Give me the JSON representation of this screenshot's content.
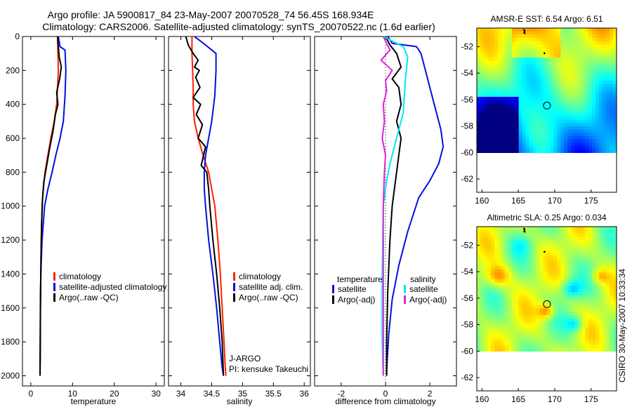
{
  "title_line1": "Argo profile: JA 5900817_84 23-May-2007 20070528_74 56.45S 168.934E",
  "title_line2": "Climatology: CARS2006. Satellite-adjusted climatology: synTS_20070522.nc (1.6d earlier)",
  "credit": "CSIRO 30-May-2007 10:33:34",
  "chart_data": [
    {
      "id": "temperature",
      "type": "line",
      "xlabel": "temperature",
      "ylabel": "",
      "xlim": [
        -2,
        32
      ],
      "ylim": [
        0,
        2060
      ],
      "xticks": [
        0,
        10,
        20,
        30
      ],
      "xtick_labels": [
        "0",
        "10",
        "20",
        "30"
      ],
      "yticks": [
        0,
        200,
        400,
        600,
        800,
        1000,
        1200,
        1400,
        1600,
        1800,
        2000
      ],
      "ytick_labels": [
        "0",
        "200",
        "400",
        "600",
        "800",
        "1000",
        "1200",
        "1400",
        "1600",
        "1800",
        "2000"
      ],
      "legend": [
        "climatology",
        "satellite-adjusted climatology",
        "Argo(..raw -QC)"
      ],
      "series": [
        {
          "name": "climatology",
          "color": "#ff2000",
          "x": [
            6.4,
            6.5,
            6.6,
            6.4,
            6.2,
            5.6,
            4.8,
            4.1,
            3.4,
            3.0,
            2.7,
            2.5,
            2.4,
            2.3,
            2.25,
            2.2,
            2.2
          ],
          "y": [
            0,
            100,
            200,
            300,
            400,
            500,
            600,
            700,
            800,
            900,
            1000,
            1200,
            1400,
            1600,
            1800,
            1950,
            2000
          ]
        },
        {
          "name": "satellite-adjusted climatology",
          "color": "#0010e0",
          "x": [
            6.6,
            7.0,
            8.2,
            8.4,
            8.2,
            7.8,
            7.0,
            6.0,
            5.1,
            4.1,
            3.3,
            2.7,
            2.4,
            2.3,
            2.25,
            2.2,
            2.2
          ],
          "y": [
            0,
            60,
            80,
            200,
            350,
            500,
            600,
            700,
            800,
            900,
            1000,
            1200,
            1400,
            1600,
            1800,
            1950,
            2000
          ]
        },
        {
          "name": "Argo(..raw -QC)",
          "color": "#000000",
          "x": [
            6.4,
            6.6,
            6.8,
            7.3,
            6.9,
            6.2,
            6.5,
            5.9,
            5.3,
            4.5,
            3.8,
            3.1,
            2.8,
            2.6,
            2.45,
            2.35,
            2.3,
            2.25,
            2.2
          ],
          "y": [
            0,
            60,
            120,
            180,
            250,
            330,
            400,
            460,
            560,
            660,
            760,
            860,
            960,
            1100,
            1300,
            1500,
            1700,
            1900,
            2000
          ]
        }
      ]
    },
    {
      "id": "salinity",
      "type": "line",
      "xlabel": "salinity",
      "ylabel": "",
      "xlim": [
        33.8,
        36.1
      ],
      "ylim": [
        0,
        2060
      ],
      "xticks": [
        34,
        34.5,
        35,
        35.5,
        36
      ],
      "xtick_labels": [
        "34",
        "34.5",
        "35",
        "35.5",
        "36"
      ],
      "legend": [
        "climatology",
        "satellite adj. clim.",
        "Argo(..raw -QC)"
      ],
      "annotations": [
        "J-ARGO",
        "PI: kensuke Takeuchi"
      ],
      "series": [
        {
          "name": "climatology",
          "color": "#ff2000",
          "x": [
            34.18,
            34.18,
            34.19,
            34.2,
            34.2,
            34.22,
            34.28,
            34.36,
            34.45,
            34.5,
            34.55,
            34.6,
            34.64,
            34.67,
            34.7,
            34.72,
            34.73
          ],
          "y": [
            0,
            100,
            200,
            300,
            400,
            500,
            600,
            700,
            800,
            900,
            1000,
            1200,
            1400,
            1600,
            1800,
            1950,
            2000
          ]
        },
        {
          "name": "satellite adj. clim.",
          "color": "#0010e0",
          "x": [
            34.22,
            34.4,
            34.57,
            34.57,
            34.55,
            34.5,
            34.45,
            34.4,
            34.38,
            34.38,
            34.4,
            34.45,
            34.52,
            34.58,
            34.63,
            34.67,
            34.69
          ],
          "y": [
            0,
            50,
            100,
            200,
            350,
            500,
            600,
            700,
            800,
            900,
            1000,
            1200,
            1400,
            1600,
            1800,
            1950,
            2000
          ]
        },
        {
          "name": "Argo(..raw -QC)",
          "color": "#000000",
          "x": [
            34.08,
            34.12,
            34.2,
            34.28,
            34.22,
            34.3,
            34.24,
            34.31,
            34.2,
            34.32,
            34.25,
            34.35,
            34.28,
            34.4,
            34.33,
            34.42,
            34.45,
            34.47,
            34.52,
            34.58,
            34.63,
            34.67,
            34.69
          ],
          "y": [
            0,
            50,
            100,
            140,
            180,
            200,
            240,
            300,
            360,
            400,
            460,
            520,
            600,
            650,
            760,
            800,
            900,
            1000,
            1200,
            1400,
            1600,
            1800,
            2000
          ]
        }
      ]
    },
    {
      "id": "difference",
      "type": "line",
      "xlabel": "difference from climatology",
      "ylabel": "",
      "xlim": [
        -3.2,
        3.2
      ],
      "ylim": [
        0,
        2060
      ],
      "xticks": [
        -2,
        0,
        2
      ],
      "xtick_labels": [
        "-2",
        "0",
        "2"
      ],
      "legend_groups": [
        {
          "header": "temperature",
          "items": [
            "satellite",
            "Argo(-adj)"
          ],
          "colors": [
            "#0010e0",
            "#000000"
          ]
        },
        {
          "header": "salinity",
          "items": [
            "satellite",
            "Argo(-adj)"
          ],
          "colors": [
            "#00e8ee",
            "#e020e0"
          ]
        }
      ],
      "series": [
        {
          "name": "temperature satellite",
          "color": "#0010e0",
          "x": [
            0.1,
            0.3,
            1.4,
            1.6,
            1.8,
            2.2,
            2.5,
            2.6,
            2.4,
            2.0,
            1.5,
            1.0,
            0.6,
            0.3,
            0.15,
            0.08,
            0.05,
            0.05
          ],
          "y": [
            0,
            40,
            60,
            100,
            200,
            400,
            550,
            650,
            750,
            850,
            950,
            1150,
            1350,
            1550,
            1750,
            1900,
            1980,
            2000
          ]
        },
        {
          "name": "temperature Argo(-adj)",
          "color": "#000000",
          "x": [
            0.0,
            0.2,
            0.5,
            0.7,
            0.3,
            0.6,
            0.7,
            0.5,
            0.7,
            0.6,
            0.5,
            0.4,
            0.3,
            0.2,
            0.1,
            0.05,
            0.05
          ],
          "y": [
            0,
            50,
            100,
            180,
            250,
            300,
            400,
            500,
            600,
            700,
            800,
            900,
            1000,
            1200,
            1500,
            1800,
            2000
          ]
        },
        {
          "name": "salinity satellite",
          "color": "#00e8ee",
          "x": [
            -0.1,
            0.8,
            1.0,
            0.9,
            0.8,
            0.6,
            0.4,
            0.2,
            0.05,
            -0.1,
            -0.15,
            -0.15,
            -0.1
          ],
          "y": [
            0,
            60,
            120,
            250,
            450,
            550,
            650,
            750,
            850,
            1000,
            1400,
            1800,
            2000
          ]
        },
        {
          "name": "salinity Argo(-adj)",
          "color": "#e020e0",
          "x": [
            -0.1,
            0.2,
            -0.2,
            0.3,
            0.0,
            0.05,
            -0.1,
            -0.05,
            -0.15,
            0.0,
            -0.05,
            -0.1,
            -0.1
          ],
          "y": [
            0,
            80,
            140,
            200,
            260,
            320,
            400,
            500,
            600,
            700,
            800,
            1000,
            2000
          ]
        }
      ]
    },
    {
      "id": "sst-map",
      "type": "heatmap",
      "title": "AMSR-E SST: 6.54 Argo: 6.51",
      "xlim": [
        159.3,
        178.5
      ],
      "ylim": [
        -63,
        -50.6
      ],
      "xticks": [
        160,
        165,
        170,
        175
      ],
      "xtick_labels": [
        "160",
        "165",
        "170",
        "175"
      ],
      "yticks": [
        -52,
        -54,
        -56,
        -58,
        -60,
        -62
      ],
      "ytick_labels": [
        "-52",
        "-54",
        "-56",
        "-58",
        "-60",
        "-62"
      ],
      "data_extent_lat": [
        -60,
        -50.6
      ],
      "marker": {
        "lon": 168.934,
        "lat": -56.45
      }
    },
    {
      "id": "sla-map",
      "type": "heatmap",
      "title": "Altimetric SLA: 0.25 Argo: 0.034",
      "xlim": [
        159.3,
        178.5
      ],
      "ylim": [
        -63,
        -50.6
      ],
      "xticks": [
        160,
        165,
        170,
        175
      ],
      "xtick_labels": [
        "160",
        "165",
        "170",
        "175"
      ],
      "yticks": [
        -52,
        -54,
        -56,
        -58,
        -60,
        -62
      ],
      "ytick_labels": [
        "-52",
        "-54",
        "-56",
        "-58",
        "-60",
        "-62"
      ],
      "data_extent_lat": [
        -60,
        -50.6
      ],
      "marker": {
        "lon": 168.934,
        "lat": -56.45
      }
    }
  ]
}
